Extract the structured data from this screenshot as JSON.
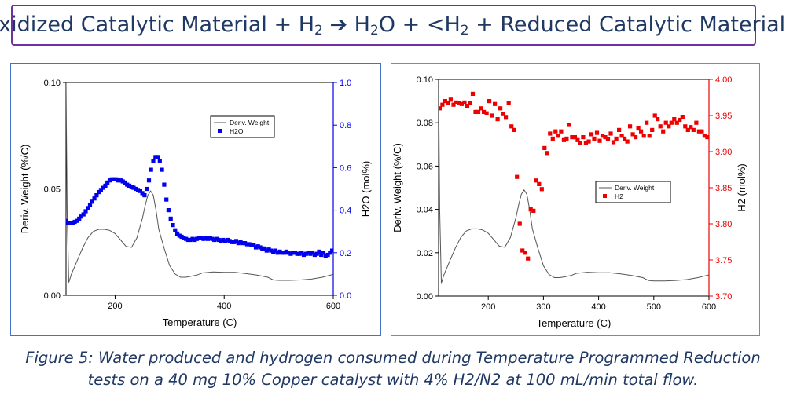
{
  "header": {
    "t1": "Oxidized Catalytic Material + H",
    "s1": "2",
    "t2": " ➔ H",
    "s2": "2",
    "t3": "O + <H",
    "s3": "2",
    "t4": " + Reduced Catalytic Material"
  },
  "caption": {
    "line1": "Figure 5: Water produced and hydrogen consumed during Temperature Programmed Reduction",
    "line2": "tests on a 40 mg 10% Copper catalyst with 4% H2/N2 at 100 mL/min total flow."
  },
  "colors": {
    "h2o": "#0000ee",
    "h2": "#ee0000",
    "deriv": "#555555"
  },
  "chart_data": [
    {
      "type": "line+scatter",
      "xlabel": "Temperature (C)",
      "ylabel": "Deriv. Weight (%/C)",
      "y2label": "H2O (mol%)",
      "xlim": [
        110,
        600
      ],
      "xticks": [
        200,
        400,
        600
      ],
      "ylim": [
        0,
        0.1
      ],
      "yticks": [
        0.0,
        0.05,
        0.1
      ],
      "ytick_labels": [
        "0.00",
        "0.05",
        "0.10"
      ],
      "y2lim": [
        0,
        1.0
      ],
      "y2ticks": [
        0.0,
        0.2,
        0.4,
        0.6,
        0.8,
        1.0
      ],
      "y2tick_labels": [
        "0.0",
        "0.2",
        "0.4",
        "0.6",
        "0.8",
        "1.0"
      ],
      "legend": {
        "position": "upper-right",
        "entries": [
          "Deriv. Weight",
          "H2O"
        ]
      },
      "series": [
        {
          "name": "Deriv. Weight",
          "axis": "left",
          "style": "line",
          "x": [
            110,
            112,
            115,
            120,
            130,
            140,
            150,
            160,
            170,
            180,
            190,
            200,
            210,
            220,
            230,
            240,
            250,
            255,
            260,
            265,
            270,
            275,
            280,
            290,
            300,
            310,
            320,
            330,
            340,
            350,
            360,
            380,
            400,
            420,
            440,
            460,
            480,
            490,
            500,
            520,
            540,
            560,
            580,
            600
          ],
          "y": [
            0.1,
            0.04,
            0.006,
            0.01,
            0.016,
            0.022,
            0.027,
            0.03,
            0.031,
            0.031,
            0.0305,
            0.029,
            0.026,
            0.023,
            0.0225,
            0.027,
            0.036,
            0.042,
            0.047,
            0.049,
            0.047,
            0.04,
            0.031,
            0.022,
            0.014,
            0.01,
            0.0085,
            0.0085,
            0.009,
            0.0095,
            0.0105,
            0.011,
            0.0108,
            0.0108,
            0.0102,
            0.0095,
            0.0085,
            0.0072,
            0.007,
            0.007,
            0.0072,
            0.0076,
            0.0085,
            0.0098
          ]
        },
        {
          "name": "H2O",
          "axis": "right",
          "style": "markers",
          "x": [
            110,
            114,
            118,
            122,
            126,
            130,
            134,
            138,
            142,
            146,
            150,
            154,
            158,
            162,
            166,
            170,
            174,
            178,
            182,
            186,
            190,
            194,
            198,
            202,
            206,
            210,
            214,
            218,
            222,
            226,
            230,
            234,
            238,
            242,
            246,
            250,
            254,
            258,
            262,
            266,
            270,
            274,
            278,
            282,
            286,
            290,
            294,
            298,
            302,
            306,
            310,
            314,
            318,
            322,
            326,
            330,
            334,
            338,
            342,
            346,
            350,
            354,
            358,
            362,
            366,
            370,
            374,
            378,
            382,
            386,
            390,
            394,
            398,
            402,
            406,
            410,
            414,
            418,
            422,
            426,
            430,
            434,
            438,
            442,
            446,
            450,
            454,
            458,
            462,
            466,
            470,
            474,
            478,
            482,
            486,
            490,
            494,
            498,
            502,
            506,
            510,
            514,
            518,
            522,
            526,
            530,
            534,
            538,
            542,
            546,
            550,
            554,
            558,
            562,
            566,
            570,
            574,
            578,
            582,
            586,
            590,
            594,
            598
          ],
          "y": [
            0.35,
            0.34,
            0.34,
            0.34,
            0.345,
            0.35,
            0.36,
            0.37,
            0.38,
            0.395,
            0.41,
            0.425,
            0.44,
            0.455,
            0.47,
            0.485,
            0.495,
            0.505,
            0.515,
            0.53,
            0.54,
            0.545,
            0.545,
            0.545,
            0.54,
            0.54,
            0.535,
            0.53,
            0.52,
            0.515,
            0.51,
            0.505,
            0.5,
            0.495,
            0.49,
            0.48,
            0.47,
            0.5,
            0.54,
            0.59,
            0.63,
            0.65,
            0.65,
            0.63,
            0.59,
            0.52,
            0.45,
            0.4,
            0.36,
            0.33,
            0.305,
            0.29,
            0.28,
            0.275,
            0.27,
            0.265,
            0.26,
            0.26,
            0.265,
            0.26,
            0.265,
            0.27,
            0.27,
            0.265,
            0.27,
            0.265,
            0.27,
            0.265,
            0.26,
            0.265,
            0.26,
            0.255,
            0.26,
            0.255,
            0.26,
            0.255,
            0.25,
            0.25,
            0.255,
            0.245,
            0.25,
            0.245,
            0.245,
            0.24,
            0.24,
            0.235,
            0.235,
            0.225,
            0.23,
            0.225,
            0.22,
            0.22,
            0.21,
            0.215,
            0.21,
            0.205,
            0.21,
            0.2,
            0.205,
            0.2,
            0.2,
            0.205,
            0.2,
            0.195,
            0.2,
            0.2,
            0.195,
            0.195,
            0.2,
            0.19,
            0.195,
            0.2,
            0.195,
            0.2,
            0.19,
            0.195,
            0.205,
            0.19,
            0.2,
            0.185,
            0.19,
            0.2,
            0.21
          ]
        }
      ]
    },
    {
      "type": "line+scatter",
      "xlabel": "Temperature (C)",
      "ylabel": "Deriv. Weight (%/C)",
      "y2label": "H2 (mol%)",
      "xlim": [
        110,
        600
      ],
      "xticks": [
        200,
        300,
        400,
        500,
        600
      ],
      "ylim": [
        0,
        0.1
      ],
      "yticks": [
        0.0,
        0.02,
        0.04,
        0.06,
        0.08,
        0.1
      ],
      "ytick_labels": [
        "0.00",
        "0.02",
        "0.04",
        "0.06",
        "0.08",
        "0.10"
      ],
      "y2lim": [
        3.7,
        4.0
      ],
      "y2ticks": [
        3.7,
        3.75,
        3.8,
        3.85,
        3.9,
        3.95,
        4.0
      ],
      "y2tick_labels": [
        "3.70",
        "3.75",
        "3.80",
        "3.85",
        "3.90",
        "3.95",
        "4.00"
      ],
      "legend": {
        "position": "center-right",
        "entries": [
          "Deriv. Weight",
          "H2"
        ]
      },
      "series": [
        {
          "name": "Deriv. Weight",
          "axis": "left",
          "style": "line",
          "x": [
            110,
            112,
            115,
            120,
            130,
            140,
            150,
            160,
            170,
            180,
            190,
            200,
            210,
            220,
            230,
            240,
            250,
            255,
            260,
            265,
            270,
            275,
            280,
            290,
            300,
            310,
            320,
            330,
            340,
            350,
            360,
            380,
            400,
            420,
            440,
            460,
            480,
            490,
            500,
            520,
            540,
            560,
            580,
            600
          ],
          "y": [
            0.1,
            0.04,
            0.006,
            0.01,
            0.016,
            0.022,
            0.027,
            0.03,
            0.031,
            0.031,
            0.0305,
            0.029,
            0.026,
            0.023,
            0.0225,
            0.027,
            0.036,
            0.042,
            0.047,
            0.049,
            0.047,
            0.04,
            0.031,
            0.022,
            0.014,
            0.01,
            0.0085,
            0.0085,
            0.009,
            0.0095,
            0.0105,
            0.011,
            0.0108,
            0.0108,
            0.0102,
            0.0095,
            0.0085,
            0.0072,
            0.007,
            0.007,
            0.0072,
            0.0076,
            0.0085,
            0.0098
          ]
        },
        {
          "name": "H2",
          "axis": "right",
          "style": "markers",
          "x": [
            112,
            117,
            122,
            127,
            132,
            137,
            142,
            147,
            152,
            157,
            162,
            167,
            172,
            177,
            182,
            187,
            192,
            197,
            202,
            207,
            212,
            217,
            222,
            227,
            232,
            237,
            242,
            247,
            252,
            257,
            262,
            267,
            272,
            277,
            282,
            287,
            292,
            297,
            302,
            307,
            312,
            317,
            322,
            327,
            332,
            337,
            342,
            347,
            352,
            357,
            362,
            367,
            372,
            377,
            382,
            387,
            392,
            397,
            402,
            407,
            412,
            417,
            422,
            427,
            432,
            437,
            442,
            447,
            452,
            457,
            462,
            467,
            472,
            477,
            482,
            487,
            492,
            497,
            502,
            507,
            512,
            517,
            522,
            527,
            532,
            537,
            542,
            547,
            552,
            557,
            562,
            567,
            572,
            577,
            582,
            587,
            592,
            597
          ],
          "y": [
            3.96,
            3.965,
            3.97,
            3.967,
            3.972,
            3.965,
            3.968,
            3.967,
            3.966,
            3.968,
            3.963,
            3.967,
            3.98,
            3.955,
            3.955,
            3.96,
            3.955,
            3.953,
            3.97,
            3.95,
            3.966,
            3.945,
            3.96,
            3.952,
            3.947,
            3.967,
            3.935,
            3.93,
            3.865,
            3.8,
            3.763,
            3.76,
            3.752,
            3.82,
            3.818,
            3.86,
            3.855,
            3.848,
            3.905,
            3.898,
            3.925,
            3.918,
            3.928,
            3.922,
            3.928,
            3.916,
            3.918,
            3.937,
            3.92,
            3.92,
            3.916,
            3.912,
            3.92,
            3.912,
            3.914,
            3.924,
            3.918,
            3.926,
            3.915,
            3.922,
            3.92,
            3.917,
            3.925,
            3.913,
            3.918,
            3.93,
            3.922,
            3.918,
            3.914,
            3.935,
            3.924,
            3.92,
            3.932,
            3.928,
            3.922,
            3.94,
            3.922,
            3.93,
            3.95,
            3.945,
            3.935,
            3.928,
            3.94,
            3.935,
            3.94,
            3.945,
            3.94,
            3.944,
            3.948,
            3.935,
            3.93,
            3.934,
            3.93,
            3.94,
            3.928,
            3.928,
            3.922,
            3.92
          ]
        }
      ]
    }
  ]
}
